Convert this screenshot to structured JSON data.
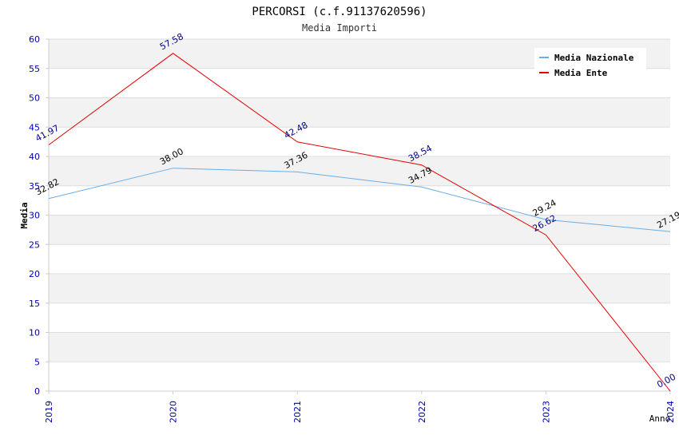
{
  "chart_data": {
    "type": "line",
    "title": "PERCORSI (c.f.91137620596)",
    "subtitle": "Media Importi",
    "xlabel": "Anno",
    "ylabel": "Media",
    "ylim": [
      0,
      60
    ],
    "yticks": [
      "0",
      "5",
      "10",
      "15",
      "20",
      "25",
      "30",
      "35",
      "40",
      "45",
      "50",
      "55",
      "60"
    ],
    "categories": [
      "2019",
      "2020",
      "2021",
      "2022",
      "2023",
      "2024"
    ],
    "grid": true,
    "legend_position": "top-right",
    "series": [
      {
        "name": "Media Nazionale",
        "color": "#6aaee8",
        "label_color": "#000000",
        "values": [
          32.82,
          38.0,
          37.36,
          34.79,
          29.24,
          27.19
        ],
        "labels": [
          "32.82",
          "38.00",
          "37.36",
          "34.79",
          "29.24",
          "27.19"
        ]
      },
      {
        "name": "Media Ente",
        "color": "#e00000",
        "label_color": "#000080",
        "values": [
          41.97,
          57.58,
          42.48,
          38.54,
          26.62,
          0.0
        ],
        "labels": [
          "41.97",
          "57.58",
          "42.48",
          "38.54",
          "26.62",
          "0.00"
        ]
      }
    ],
    "colors": {
      "axis_text": "#0000aa",
      "band": "#f2f2f2",
      "grid": "#dddddd"
    }
  }
}
